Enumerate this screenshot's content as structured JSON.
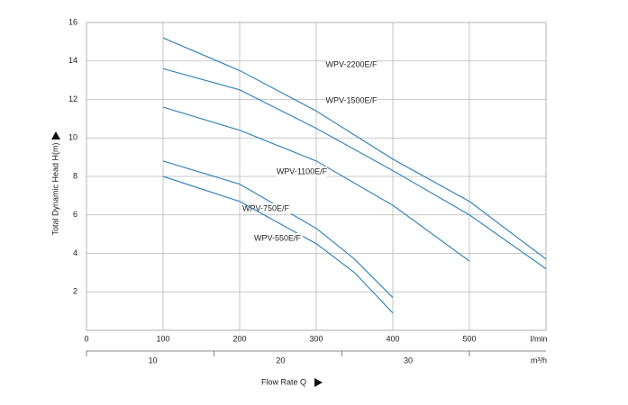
{
  "chart_data": {
    "type": "line",
    "xlabel": "Flow Rate Q",
    "ylabel": "Total Dynamic Head H(m)",
    "xlim": [
      0,
      600
    ],
    "xticks": [
      0,
      100,
      200,
      300,
      400,
      500,
      {
        "value": 600,
        "label": "l/min"
      }
    ],
    "ylim": [
      0,
      16
    ],
    "yticks": [
      2,
      4,
      6,
      8,
      10,
      12,
      14,
      16
    ],
    "x2lim": [
      0,
      36
    ],
    "x2ticks": [
      10,
      20,
      30,
      {
        "value": 36,
        "label": "m³/h"
      }
    ],
    "grid": true,
    "series": [
      {
        "name": "WPV-2200E/F",
        "color": "#3a86b8",
        "x": [
          100,
          200,
          300,
          400,
          500,
          600
        ],
        "values": [
          15.2,
          13.5,
          11.4,
          8.9,
          6.7,
          3.7
        ]
      },
      {
        "name": "WPV-1500E/F",
        "color": "#3a86b8",
        "x": [
          100,
          200,
          300,
          400,
          500,
          600
        ],
        "values": [
          13.6,
          12.5,
          10.5,
          8.3,
          6.0,
          3.2
        ]
      },
      {
        "name": "WPV-1100E/F",
        "color": "#3a86b8",
        "x": [
          100,
          200,
          300,
          400,
          500
        ],
        "values": [
          11.6,
          10.4,
          8.8,
          6.5,
          3.6
        ]
      },
      {
        "name": "WPV-750E/F",
        "color": "#3a86b8",
        "x": [
          100,
          200,
          300,
          350,
          400
        ],
        "values": [
          8.8,
          7.6,
          5.3,
          3.7,
          1.7
        ]
      },
      {
        "name": "WPV-550E/F",
        "color": "#3a86b8",
        "x": [
          100,
          200,
          300,
          350,
          400
        ],
        "values": [
          8.0,
          6.7,
          4.5,
          3.0,
          0.9
        ]
      }
    ]
  }
}
